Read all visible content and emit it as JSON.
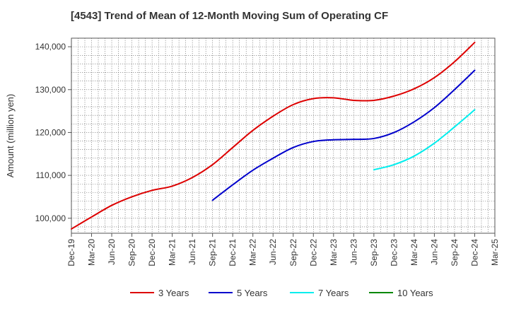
{
  "chart_data": {
    "type": "line",
    "title": "[4543]  Trend of Mean of 12-Month Moving Sum of Operating CF",
    "xlabel": "",
    "ylabel": "Amount (million yen)",
    "ylim": [
      96500,
      142000
    ],
    "yticks": [
      100000,
      110000,
      120000,
      130000,
      140000
    ],
    "ytick_labels": [
      "100,000",
      "110,000",
      "120,000",
      "130,000",
      "140,000"
    ],
    "categories": [
      "Dec-19",
      "Mar-20",
      "Jun-20",
      "Sep-20",
      "Dec-20",
      "Mar-21",
      "Jun-21",
      "Sep-21",
      "Dec-21",
      "Mar-22",
      "Jun-22",
      "Sep-22",
      "Dec-22",
      "Mar-23",
      "Jun-23",
      "Sep-23",
      "Dec-23",
      "Mar-24",
      "Jun-24",
      "Sep-24",
      "Dec-24",
      "Mar-25"
    ],
    "grid": true,
    "legend_position": "bottom",
    "series": [
      {
        "name": "3 Years",
        "color": "#dd0000",
        "values": [
          97500,
          100300,
          103000,
          105000,
          106500,
          107500,
          109500,
          112500,
          116500,
          120500,
          123800,
          126500,
          127900,
          128100,
          127500,
          127500,
          128500,
          130200,
          132800,
          136500,
          141000,
          null
        ]
      },
      {
        "name": "5 Years",
        "color": "#0000cc",
        "values": [
          null,
          null,
          null,
          null,
          null,
          null,
          null,
          104200,
          107800,
          111200,
          114000,
          116500,
          117900,
          118300,
          118400,
          118600,
          120000,
          122500,
          125800,
          130000,
          134500,
          null
        ]
      },
      {
        "name": "7 Years",
        "color": "#00eeee",
        "values": [
          null,
          null,
          null,
          null,
          null,
          null,
          null,
          null,
          null,
          null,
          null,
          null,
          null,
          null,
          null,
          111300,
          112500,
          114500,
          117500,
          121300,
          125300,
          null
        ]
      },
      {
        "name": "10 Years",
        "color": "#008800",
        "values": [
          null,
          null,
          null,
          null,
          null,
          null,
          null,
          null,
          null,
          null,
          null,
          null,
          null,
          null,
          null,
          null,
          null,
          null,
          null,
          null,
          null,
          null
        ]
      }
    ]
  }
}
